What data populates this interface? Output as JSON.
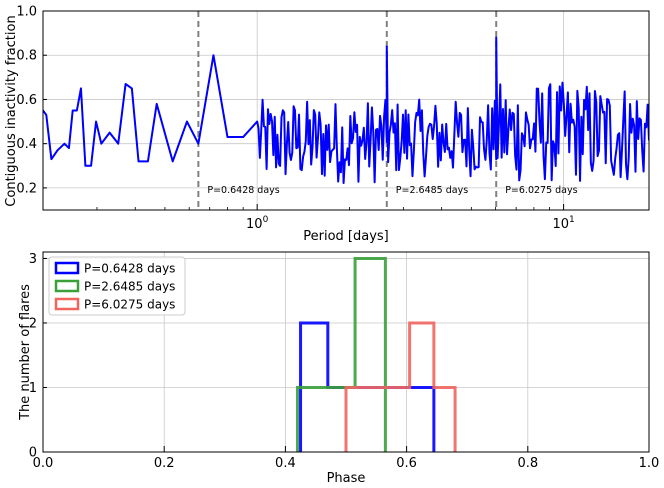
{
  "chart_data": [
    {
      "type": "line",
      "title": "",
      "xlabel": "Period [days]",
      "ylabel": "Contiguous inactivity fraction",
      "xscale": "log",
      "xlim": [
        0.2,
        19
      ],
      "ylim": [
        0.1,
        1.0
      ],
      "xticks": [
        {
          "value": 1,
          "label": "10^0"
        },
        {
          "value": 10,
          "label": "10^1"
        }
      ],
      "yticks": [
        0.2,
        0.4,
        0.6,
        0.8,
        1.0
      ],
      "ytick_labels": [
        "0.2",
        "0.4",
        "0.6",
        "0.8",
        "1.0"
      ],
      "grid": true,
      "line_color": "#0000ff",
      "markers": [
        {
          "period": 0.6428,
          "label": "P=0.6428 days"
        },
        {
          "period": 2.6485,
          "label": "P=2.6485 days"
        },
        {
          "period": 6.0275,
          "label": "P=6.0275 days"
        }
      ],
      "series": [
        {
          "x": [
            0.2,
            0.205,
            0.213,
            0.223,
            0.235,
            0.243,
            0.25,
            0.258,
            0.266,
            0.275,
            0.287,
            0.298,
            0.31,
            0.33,
            0.352,
            0.372,
            0.39,
            0.41,
            0.44,
            0.47,
            0.53,
            0.59,
            0.6428,
            0.72,
            0.8,
            0.9,
            1.0
          ],
          "y": [
            0.55,
            0.53,
            0.33,
            0.37,
            0.4,
            0.38,
            0.55,
            0.55,
            0.65,
            0.3,
            0.3,
            0.5,
            0.4,
            0.45,
            0.4,
            0.67,
            0.65,
            0.32,
            0.32,
            0.58,
            0.32,
            0.5,
            0.4,
            0.8,
            0.43,
            0.43,
            0.5
          ]
        }
      ],
      "noise_regions": [
        {
          "from": 1.0,
          "to": 2.6485,
          "range": [
            0.22,
            0.6
          ]
        },
        {
          "from": 2.6485,
          "to": 6.0275,
          "range": [
            0.25,
            0.6
          ]
        },
        {
          "from": 6.0275,
          "to": 19,
          "range": [
            0.22,
            0.68
          ]
        }
      ],
      "peaks": [
        {
          "x": 2.6485,
          "y": 0.84
        },
        {
          "x": 6.0275,
          "y": 0.88
        }
      ]
    },
    {
      "type": "bar",
      "subtype": "histogram-step",
      "title": "",
      "xlabel": "Phase",
      "ylabel": "The number of flares",
      "xlim": [
        0.0,
        1.0
      ],
      "ylim": [
        0,
        3.1
      ],
      "xticks": [
        0.0,
        0.2,
        0.4,
        0.6,
        0.8,
        1.0
      ],
      "xtick_labels": [
        "0.0",
        "0.2",
        "0.4",
        "0.6",
        "0.8",
        "1.0"
      ],
      "yticks": [
        0,
        1,
        2,
        3
      ],
      "ytick_labels": [
        "0",
        "1",
        "2",
        "3"
      ],
      "grid": true,
      "legend_position": "top-left",
      "series": [
        {
          "name": "P=0.6428 days",
          "color": "#0000ff",
          "edges": [
            0.425,
            0.47,
            0.645
          ],
          "values": [
            2,
            1
          ]
        },
        {
          "name": "P=2.6485 days",
          "color": "#3aa03a",
          "edges": [
            0.42,
            0.515,
            0.565
          ],
          "values": [
            1,
            3
          ]
        },
        {
          "name": "P=6.0275 days",
          "color": "#f0665e",
          "edges": [
            0.5,
            0.605,
            0.645,
            0.68
          ],
          "values": [
            1,
            2,
            1
          ]
        }
      ]
    }
  ]
}
